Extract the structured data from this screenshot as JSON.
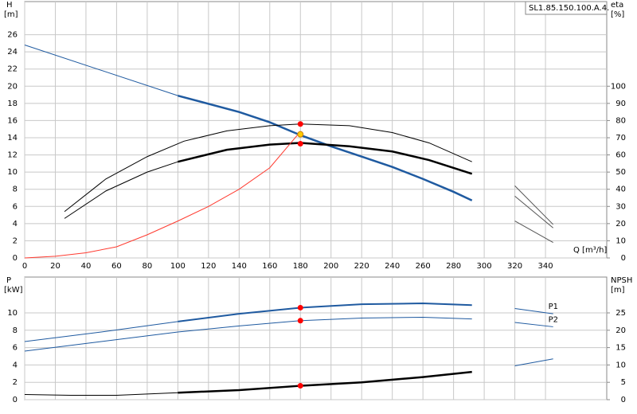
{
  "chart_data": [
    {
      "type": "line",
      "y_label": "H",
      "y_unit": "[m]",
      "y2_label": "eta",
      "y2_unit": "[%]",
      "x_label": "Q [m³/h]",
      "annotation": "SL1.85.150.100.A.4.",
      "xlim": [
        0,
        380
      ],
      "xticks": [
        0,
        20,
        40,
        60,
        80,
        100,
        120,
        140,
        160,
        180,
        200,
        220,
        240,
        260,
        280,
        300,
        320,
        340
      ],
      "ylim": [
        0,
        28
      ],
      "yticks": [
        0,
        2,
        4,
        6,
        8,
        10,
        12,
        14,
        16,
        18,
        20,
        22,
        24,
        26
      ],
      "y2lim": [
        0,
        140
      ],
      "y2ticks": [
        0,
        10,
        20,
        30,
        40,
        50,
        60,
        70,
        80,
        90,
        100
      ],
      "grid": true,
      "series": [
        {
          "color": "#1f5aa0",
          "width": 1,
          "x": [
            0,
            100
          ],
          "values": [
            24.8,
            18.9
          ]
        },
        {
          "color": "#1f5aa0",
          "width": 2.5,
          "x": [
            100,
            140,
            160,
            180,
            200,
            220,
            240,
            260,
            280,
            292
          ],
          "values": [
            18.9,
            17.0,
            15.8,
            14.3,
            13.0,
            11.8,
            10.6,
            9.2,
            7.7,
            6.7
          ]
        },
        {
          "color": "#000000",
          "width": 1,
          "axis": "y2",
          "x": [
            26,
            53,
            80,
            104,
            132,
            160,
            180,
            212,
            240,
            264,
            292
          ],
          "values": [
            27,
            46,
            59,
            68,
            74,
            77,
            78,
            77,
            73,
            67,
            56
          ]
        },
        {
          "color": "#000000",
          "width": 1,
          "axis": "y2",
          "x": [
            26,
            53,
            80,
            100
          ],
          "values": [
            23,
            39,
            50,
            56
          ]
        },
        {
          "color": "#000000",
          "width": 2.5,
          "axis": "y2",
          "x": [
            100,
            132,
            160,
            180,
            212,
            240,
            264,
            292
          ],
          "values": [
            56,
            63,
            66,
            67,
            65,
            62,
            57,
            49
          ]
        },
        {
          "color": "#ff3b30",
          "width": 1,
          "x": [
            0,
            20,
            40,
            60,
            80,
            100,
            120,
            140,
            160,
            178
          ],
          "values": [
            0,
            0.2,
            0.6,
            1.3,
            2.7,
            4.3,
            6.0,
            8.0,
            10.5,
            14.3
          ]
        },
        {
          "color": "#555555",
          "width": 1,
          "x": [
            320,
            345
          ],
          "values": [
            8.4,
            3.9
          ]
        },
        {
          "color": "#555555",
          "width": 1,
          "x": [
            320,
            345
          ],
          "values": [
            7.2,
            3.5
          ]
        },
        {
          "color": "#555555",
          "width": 1,
          "x": [
            320,
            345
          ],
          "values": [
            4.3,
            1.8
          ]
        }
      ],
      "points": [
        {
          "x": 180,
          "value": 15.6,
          "color": "#ff0000"
        },
        {
          "x": 180,
          "value": 13.3,
          "color": "#ff0000"
        },
        {
          "x": 180,
          "value": 14.4,
          "color": "#ffcc00"
        }
      ]
    },
    {
      "type": "line",
      "y_label": "P",
      "y_unit": "[kW]",
      "y2_label": "NPSH",
      "y2_unit": "[m]",
      "xlim": [
        0,
        380
      ],
      "xticks": [
        0,
        20,
        40,
        60,
        80,
        100,
        120,
        140,
        160,
        180,
        200,
        220,
        240,
        260,
        280,
        300,
        320,
        340
      ],
      "ylim": [
        0,
        14
      ],
      "yticks": [
        0,
        2,
        4,
        6,
        8,
        10
      ],
      "y2lim": [
        0,
        35
      ],
      "y2ticks": [
        0,
        5,
        10,
        15,
        20,
        25
      ],
      "grid": true,
      "series": [
        {
          "color": "#1f5aa0",
          "width": 1,
          "x": [
            0,
            50,
            100
          ],
          "values": [
            6.7,
            7.8,
            9.0
          ]
        },
        {
          "color": "#1f5aa0",
          "width": 2,
          "x": [
            100,
            140,
            180,
            220,
            260,
            292
          ],
          "values": [
            9.0,
            9.9,
            10.6,
            11.0,
            11.1,
            10.9
          ]
        },
        {
          "color": "#1f5aa0",
          "width": 1,
          "x": [
            0,
            50,
            100,
            140,
            180,
            220,
            260,
            292
          ],
          "values": [
            5.6,
            6.7,
            7.8,
            8.5,
            9.1,
            9.4,
            9.5,
            9.3
          ]
        },
        {
          "color": "#000000",
          "width": 1,
          "axis": "y2",
          "x": [
            0,
            30,
            60,
            100
          ],
          "values": [
            1.5,
            1.25,
            1.25,
            2
          ]
        },
        {
          "color": "#000000",
          "width": 2.5,
          "axis": "y2",
          "x": [
            100,
            140,
            180,
            220,
            260,
            292
          ],
          "values": [
            2,
            2.75,
            4,
            5,
            6.5,
            8
          ]
        },
        {
          "name": "P1",
          "color": "#1f5aa0",
          "width": 1,
          "x": [
            320,
            345
          ],
          "values": [
            10.5,
            9.9
          ]
        },
        {
          "name": "P2",
          "color": "#1f5aa0",
          "width": 1,
          "x": [
            320,
            345
          ],
          "values": [
            8.9,
            8.4
          ]
        },
        {
          "color": "#1f5aa0",
          "width": 1,
          "x": [
            320,
            345
          ],
          "values": [
            3.9,
            4.7
          ]
        }
      ],
      "points": [
        {
          "x": 180,
          "value": 10.6,
          "color": "#ff0000"
        },
        {
          "x": 180,
          "value": 9.1,
          "color": "#ff0000"
        },
        {
          "x": 180,
          "value": 4,
          "color": "#ff0000",
          "axis": "y2"
        }
      ]
    }
  ]
}
